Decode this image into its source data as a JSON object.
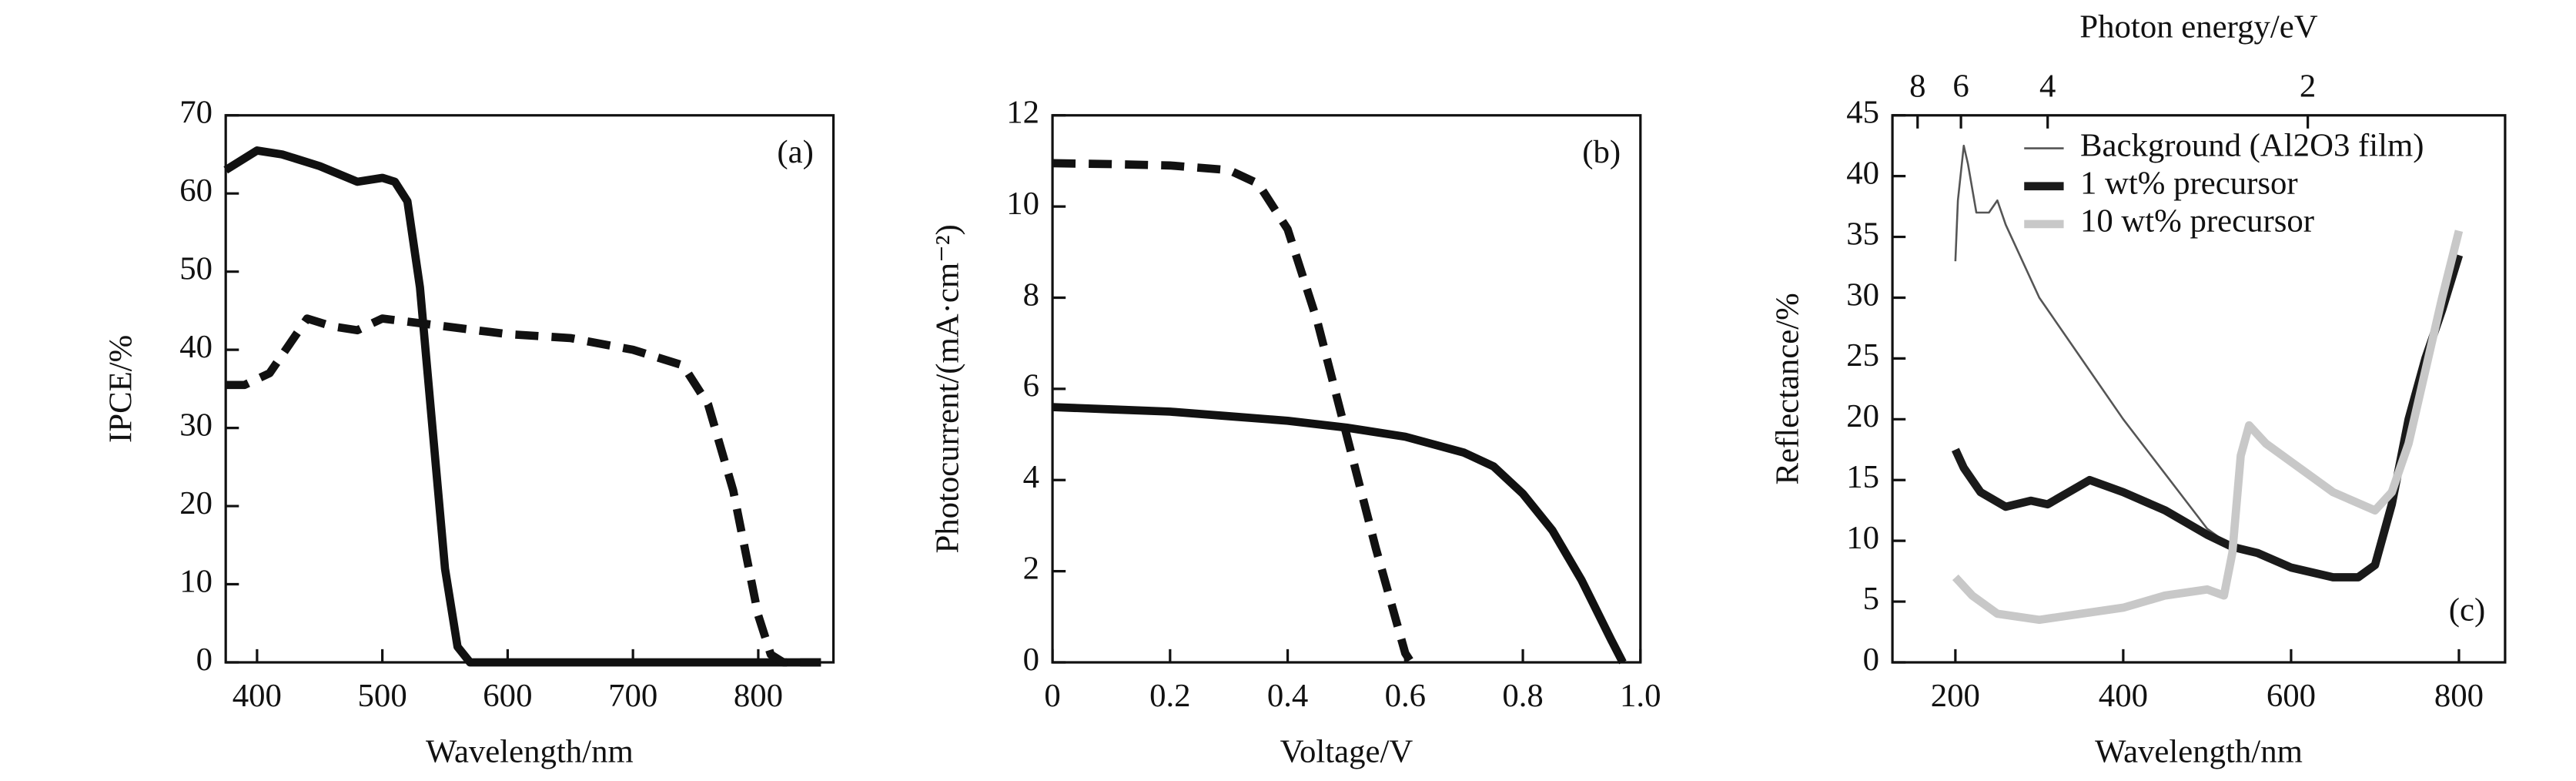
{
  "chart_data": [
    {
      "type": "line",
      "xlabel": "Wavelength/nm",
      "ylabel": "IPCE/%",
      "annotation": "(a)",
      "xlim": [
        375,
        860
      ],
      "xticks": [
        400,
        500,
        600,
        700,
        800
      ],
      "ylim": [
        0,
        70
      ],
      "yticks": [
        0,
        10,
        20,
        30,
        40,
        50,
        60,
        70
      ],
      "series": [
        {
          "color": "#111111",
          "dashed": false,
          "x": [
            375,
            400,
            420,
            450,
            480,
            500,
            510,
            520,
            530,
            540,
            550,
            560,
            570,
            850
          ],
          "values": [
            63,
            65.5,
            65,
            63.5,
            61.5,
            62,
            61.5,
            59,
            48,
            30,
            12,
            2,
            0,
            0
          ]
        },
        {
          "color": "#111111",
          "dashed": true,
          "x": [
            375,
            390,
            410,
            440,
            460,
            480,
            500,
            550,
            600,
            650,
            700,
            740,
            760,
            780,
            800,
            810,
            820,
            850
          ],
          "values": [
            35.5,
            35.5,
            37,
            44,
            43,
            42.5,
            44,
            43,
            42,
            41.5,
            40,
            38,
            33,
            22,
            6,
            1,
            0,
            0
          ]
        }
      ]
    },
    {
      "type": "line",
      "xlabel": "Voltage/V",
      "ylabel": "Photocurrent/(mA·cm⁻²)",
      "annotation": "(b)",
      "xlim": [
        0,
        1.0
      ],
      "xticks": [
        0,
        0.2,
        0.4,
        0.6,
        0.8,
        {
          "value": 1.0,
          "label": "1.0"
        }
      ],
      "ylim": [
        0,
        12
      ],
      "yticks": [
        0,
        2,
        4,
        6,
        8,
        10,
        12
      ],
      "series": [
        {
          "color": "#111111",
          "dashed": true,
          "x": [
            0,
            0.1,
            0.2,
            0.3,
            0.35,
            0.4,
            0.45,
            0.5,
            0.55,
            0.6,
            0.61
          ],
          "values": [
            10.95,
            10.93,
            10.9,
            10.8,
            10.5,
            9.5,
            7.5,
            5,
            2.5,
            0.2,
            0
          ]
        },
        {
          "color": "#111111",
          "dashed": false,
          "x": [
            0,
            0.1,
            0.2,
            0.3,
            0.4,
            0.5,
            0.6,
            0.7,
            0.75,
            0.8,
            0.85,
            0.9,
            0.95,
            0.97
          ],
          "values": [
            5.6,
            5.55,
            5.5,
            5.4,
            5.3,
            5.15,
            4.95,
            4.6,
            4.3,
            3.7,
            2.9,
            1.8,
            0.5,
            0
          ]
        }
      ]
    },
    {
      "type": "line",
      "xlabel": "Wavelength/nm",
      "ylabel": "Reflectance/%",
      "x2label": "Photon energy/eV",
      "annotation": "(c)",
      "xlim": [
        125,
        855
      ],
      "xticks": [
        200,
        400,
        600,
        800
      ],
      "x2ticks": [
        8,
        6,
        4,
        2
      ],
      "ylim": [
        0,
        45
      ],
      "yticks": [
        0,
        5,
        10,
        15,
        20,
        25,
        30,
        35,
        40,
        45
      ],
      "legend": "upper right",
      "series": [
        {
          "name": "Background (Al2O3 film)",
          "color": "#555555",
          "width": 1.2,
          "x": [
            200,
            203,
            210,
            215,
            225,
            240,
            250,
            260,
            300,
            350,
            400,
            450,
            500,
            530
          ],
          "values": [
            33,
            38,
            42.5,
            41,
            37,
            37,
            38,
            36,
            30,
            25,
            20,
            15.5,
            11,
            9.5
          ]
        },
        {
          "name": "1 wt% precursor",
          "color": "#1a1a1a",
          "width": 5,
          "x": [
            200,
            210,
            230,
            260,
            290,
            310,
            330,
            360,
            400,
            450,
            500,
            530,
            560,
            600,
            650,
            680,
            700,
            720,
            740,
            760,
            780,
            800
          ],
          "values": [
            17.5,
            16,
            14,
            12.8,
            13.3,
            13,
            13.8,
            15,
            14,
            12.5,
            10.5,
            9.5,
            9,
            7.8,
            7,
            7,
            8,
            13,
            20,
            25,
            29,
            33.5
          ]
        },
        {
          "name": "10 wt% precursor",
          "color": "#c8c8c8",
          "width": 5,
          "x": [
            200,
            220,
            250,
            300,
            350,
            400,
            450,
            500,
            520,
            530,
            540,
            550,
            570,
            600,
            650,
            700,
            720,
            740,
            760,
            780,
            800
          ],
          "values": [
            7,
            5.5,
            4,
            3.5,
            4,
            4.5,
            5.5,
            6,
            5.5,
            9,
            17,
            19.5,
            18,
            16.5,
            14,
            12.5,
            14,
            18,
            24,
            30,
            35.5
          ]
        }
      ]
    }
  ]
}
